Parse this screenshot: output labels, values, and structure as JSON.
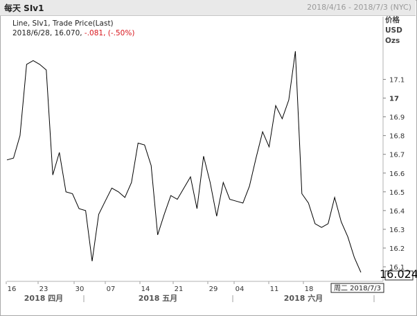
{
  "window": {
    "title": "每天 SIv1",
    "date_range": "2018/4/16 - 2018/7/3 (NYC)"
  },
  "legend": {
    "line1": "Line, SIv1, Trade Price(Last)",
    "line2_prefix": "2018/6/28, 16.070,",
    "line2_change": " -.081, (-.50%)"
  },
  "units": {
    "line1": "价格",
    "line2": "USD",
    "line3": "Ozs"
  },
  "colors": {
    "line": "#000000",
    "negative": "#d8141b",
    "grid": "#c8c8c8"
  },
  "chart_data": {
    "type": "line",
    "title": "每天 SIv1",
    "series": [
      {
        "name": "SIv1",
        "values": [
          16.67,
          16.68,
          16.8,
          17.18,
          17.2,
          17.18,
          17.15,
          16.59,
          16.71,
          16.5,
          16.49,
          16.41,
          16.4,
          16.13,
          16.38,
          16.45,
          16.52,
          16.5,
          16.47,
          16.55,
          16.76,
          16.75,
          16.64,
          16.27,
          16.38,
          16.48,
          16.46,
          16.52,
          16.58,
          16.41,
          16.69,
          16.55,
          16.37,
          16.55,
          16.46,
          16.45,
          16.44,
          16.53,
          16.68,
          16.82,
          16.74,
          16.96,
          16.89,
          16.99,
          17.25,
          16.49,
          16.44,
          16.33,
          16.31,
          16.33,
          16.47,
          16.34,
          16.26,
          16.15,
          16.07
        ]
      }
    ],
    "y_ticks": [
      "16.1",
      "16.2",
      "16.3",
      "16.4",
      "16.5",
      "16.6",
      "16.7",
      "16.8",
      "16.9",
      "17",
      "17.1"
    ],
    "y_range": [
      16.03,
      17.23
    ],
    "x_tick_labels": [
      "16",
      "23",
      "30",
      "07",
      "14",
      "21",
      "29",
      "04",
      "11",
      "18"
    ],
    "month_labels": [
      "2018 四月",
      "2018 五月",
      "2018 六月"
    ],
    "last_value": "16.024",
    "cursor_label": "周二 2018/7/3",
    "grid": true
  }
}
